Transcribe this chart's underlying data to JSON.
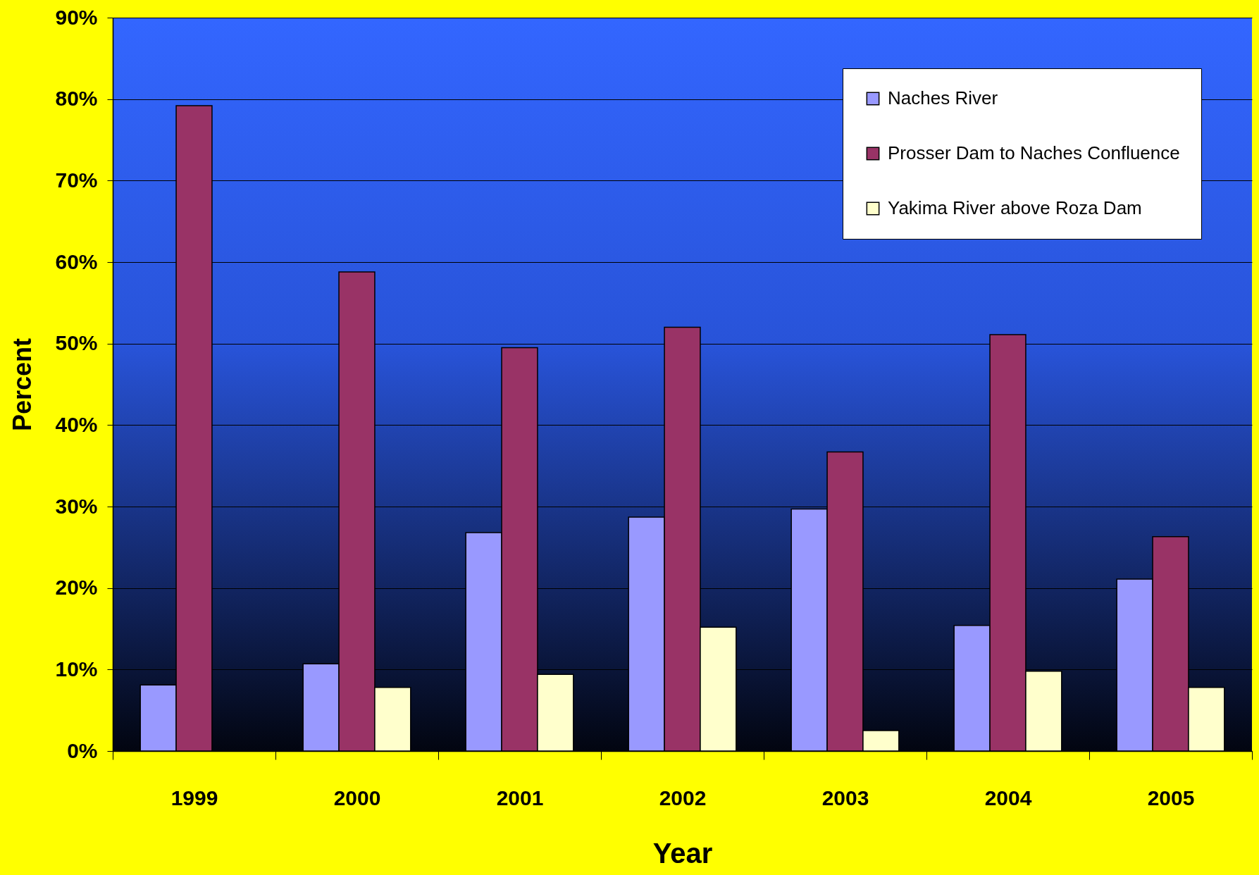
{
  "chart_data": {
    "type": "bar",
    "xlabel": "Year",
    "ylabel": "Percent",
    "categories": [
      "1999",
      "2000",
      "2001",
      "2002",
      "2003",
      "2004",
      "2005"
    ],
    "series": [
      {
        "name": "Naches River",
        "color": "#9999ff",
        "values": [
          8.1,
          10.7,
          26.8,
          28.7,
          29.7,
          15.4,
          21.1
        ]
      },
      {
        "name": "Prosser Dam to Naches Confluence",
        "color": "#993366",
        "values": [
          79.2,
          58.8,
          49.5,
          52.0,
          36.7,
          51.1,
          26.3
        ]
      },
      {
        "name": "Yakima River above Roza Dam",
        "color": "#ffffcc",
        "values": [
          null,
          7.8,
          9.4,
          15.2,
          2.5,
          9.8,
          7.8
        ]
      }
    ],
    "ylim": [
      0,
      90
    ],
    "yticks": [
      {
        "value": 0,
        "label": "0%"
      },
      {
        "value": 10,
        "label": "10%"
      },
      {
        "value": 20,
        "label": "20%"
      },
      {
        "value": 30,
        "label": "30%"
      },
      {
        "value": 40,
        "label": "40%"
      },
      {
        "value": 50,
        "label": "50%"
      },
      {
        "value": 60,
        "label": "60%"
      },
      {
        "value": 70,
        "label": "70%"
      },
      {
        "value": 80,
        "label": "80%"
      },
      {
        "value": 90,
        "label": "90%"
      }
    ],
    "grid": "y",
    "legend": "top right"
  }
}
